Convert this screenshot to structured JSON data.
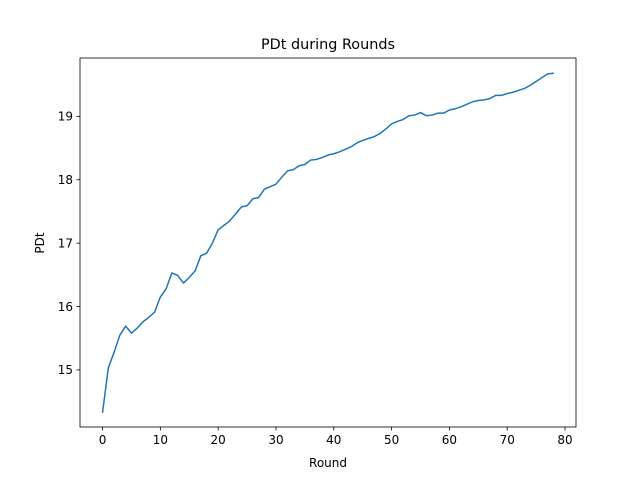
{
  "chart_data": {
    "type": "line",
    "title": "PDt during Rounds",
    "xlabel": "Round",
    "ylabel": "PDt",
    "xlim": [
      -3.9,
      81.9
    ],
    "ylim": [
      14.1,
      19.92
    ],
    "xticks": [
      0,
      10,
      20,
      30,
      40,
      50,
      60,
      70,
      80
    ],
    "yticks": [
      15,
      16,
      17,
      18,
      19
    ],
    "grid": false,
    "line_color": "#1f77b4",
    "series": [
      {
        "x": [
          0,
          1,
          2,
          3,
          4,
          5,
          6,
          7,
          8,
          9,
          10,
          11,
          12,
          13,
          14,
          15,
          16,
          17,
          18,
          19,
          20,
          21,
          22,
          23,
          24,
          25,
          26,
          27,
          28,
          29,
          30,
          31,
          32,
          33,
          34,
          35,
          36,
          37,
          38,
          39,
          40,
          41,
          42,
          43,
          44,
          45,
          46,
          47,
          48,
          49,
          50,
          51,
          52,
          53,
          54,
          55,
          56,
          57,
          58,
          59,
          60,
          61,
          62,
          63,
          64,
          65,
          66,
          67,
          68,
          69,
          70,
          71,
          72,
          73,
          74,
          75,
          76,
          77,
          78
        ],
        "values": [
          14.33,
          15.03,
          15.28,
          15.55,
          15.69,
          15.58,
          15.66,
          15.76,
          15.83,
          15.91,
          16.15,
          16.28,
          16.53,
          16.49,
          16.37,
          16.46,
          16.56,
          16.8,
          16.84,
          17.0,
          17.21,
          17.28,
          17.35,
          17.46,
          17.57,
          17.59,
          17.7,
          17.72,
          17.85,
          17.89,
          17.93,
          18.04,
          18.14,
          18.16,
          18.22,
          18.24,
          18.31,
          18.32,
          18.35,
          18.39,
          18.41,
          18.44,
          18.48,
          18.52,
          18.58,
          18.62,
          18.65,
          18.68,
          18.73,
          18.8,
          18.88,
          18.92,
          18.95,
          19.01,
          19.02,
          19.06,
          19.01,
          19.02,
          19.05,
          19.05,
          19.1,
          19.12,
          19.15,
          19.19,
          19.23,
          19.25,
          19.26,
          19.28,
          19.33,
          19.33,
          19.36,
          19.38,
          19.41,
          19.44,
          19.49,
          19.55,
          19.61,
          19.67,
          19.68
        ]
      }
    ]
  }
}
